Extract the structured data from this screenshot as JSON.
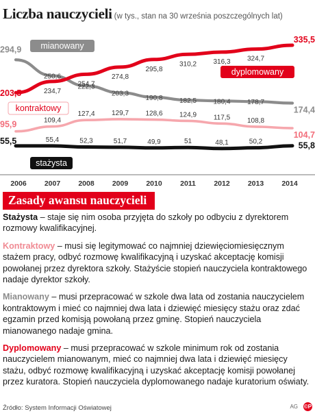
{
  "header": {
    "title": "Liczba nauczycieli",
    "subtitle": "(w tys., stan na 30 września poszczególnych lat)"
  },
  "colors": {
    "dyplomowany": "#e2001a",
    "mianowany": "#8c8c8c",
    "kontraktowy": "#f6a7ad",
    "stazysta": "#111111"
  },
  "chart_data": {
    "type": "line",
    "x": [
      "2006",
      "2007",
      "2008",
      "2009",
      "2010",
      "2011",
      "2012",
      "2013",
      "2014"
    ],
    "grid": false,
    "ylim": [
      40,
      345
    ],
    "series": [
      {
        "key": "mianowany",
        "name": "mianowany",
        "values": [
          294.9,
          250.6,
          222.3,
          203.3,
          190.8,
          182.5,
          180.4,
          178.7,
          174.4
        ],
        "labels": [
          "294,9",
          "250,6",
          "222,3",
          "203,3",
          "190,8",
          "182,5",
          "180,4",
          "178,7",
          "174,4"
        ]
      },
      {
        "key": "dyplomowany",
        "name": "dyplomowany",
        "values": [
          203.5,
          234.7,
          254.7,
          274.8,
          295.8,
          310.2,
          316.3,
          324.7,
          335.5
        ],
        "labels": [
          "203,5",
          "234,7",
          "254,7",
          "274,8",
          "295,8",
          "310,2",
          "316,3",
          "324,7",
          "335,5"
        ]
      },
      {
        "key": "kontraktowy",
        "name": "kontraktowy",
        "values": [
          95.9,
          109.4,
          127.4,
          129.7,
          128.6,
          124.9,
          117.5,
          108.8,
          104.7
        ],
        "labels": [
          "95,9",
          "109,4",
          "127,4",
          "129,7",
          "128,6",
          "124,9",
          "117,5",
          "108,8",
          "104,7"
        ]
      },
      {
        "key": "stazysta",
        "name": "stażysta",
        "values": [
          55.5,
          55.4,
          52.3,
          51.7,
          49.9,
          51,
          48.1,
          50.2,
          55.8
        ],
        "labels": [
          "55,5",
          "55,4",
          "52,3",
          "51,7",
          "49,9",
          "51",
          "48,1",
          "50,2",
          "55,8"
        ]
      }
    ]
  },
  "banner": "Zasady awansu nauczycieli",
  "rules": [
    {
      "term": "Stażysta",
      "text": " – staje się nim osoba przyjęta do szkoły po odbyciu z dyrektorem rozmowy kwalifikacyjnej."
    },
    {
      "term": "Kontraktowy",
      "text": " – musi się legitymować co najmniej dziewięciomiesięcznym stażem pracy, odbyć rozmowę kwalifikacyjną i uzyskać akceptację komisji powołanej przez dyrektora szkoły. Stażyście stopień nauczyciela kontraktowego nadaje dyrektor szkoły."
    },
    {
      "term": "Mianowany",
      "text": " – musi przepracować w szkole dwa lata od zostania nauczycielem kontraktowym i mieć co najmniej dwa lata i dziewięć miesięcy stażu oraz zdać egzamin przed komisją powołaną przez gminę. Stopień nauczyciela mianowanego nadaje gmina."
    },
    {
      "term": "Dyplomowany",
      "text": " – musi przepracować w szkole minimum rok od zostania nauczycielem mianowanym, mieć co najmniej dwa lata i dziewięć miesięcy stażu, odbyć rozmowę kwalifikacyjną i uzyskać akceptację komisji powołanej przez kuratora. Stopień nauczyciela dyplomowanego nadaje kuratorium oświaty."
    }
  ],
  "footer": {
    "source": "Źródło: System Informacji Oświatowej",
    "agency": "AG",
    "logo": "©P"
  }
}
